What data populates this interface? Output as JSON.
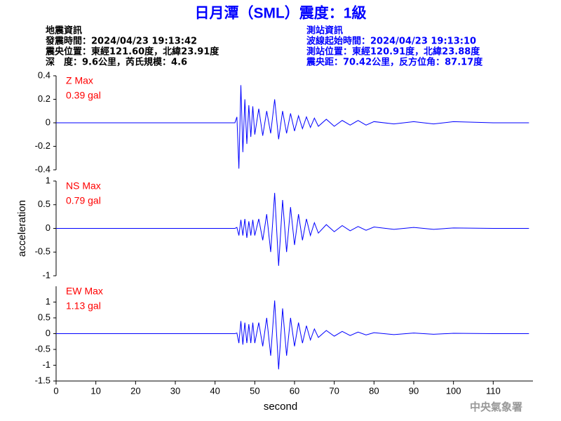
{
  "header": {
    "title": "日月潭（SML）震度：1級",
    "left": [
      "地震資訊",
      "發震時間：2024/04/23 19:13:42",
      "震央位置：東經121.60度，北緯23.91度",
      "深　度：9.6公里，芮氏規模：4.6"
    ],
    "right": [
      "測站資訊",
      "波線起始時間：2024/04/23 19:13:10",
      "測站位置：東經120.91度，北緯23.88度",
      "震央距：70.42公里，反方位角：87.17度"
    ],
    "watermark": "中央氣象署"
  },
  "chart_data": [
    {
      "type": "line",
      "annotation": [
        "Z Max",
        "0.39 gal"
      ],
      "color": "#0000ff",
      "xlim": [
        0,
        120
      ],
      "ylim": [
        -0.4,
        0.4
      ],
      "yticks": [
        0.4,
        0.2,
        0,
        -0.2,
        -0.4
      ],
      "x": [
        0,
        20,
        45,
        45.5,
        46,
        46.5,
        47,
        47.5,
        48,
        48.5,
        49,
        49.5,
        50,
        51,
        52,
        53,
        54,
        55,
        56,
        57,
        58,
        59,
        60,
        61,
        62,
        63,
        64,
        65,
        66,
        68,
        70,
        72,
        74,
        76,
        78,
        80,
        85,
        90,
        95,
        100,
        110,
        119
      ],
      "values": [
        0,
        0,
        0,
        0.05,
        -0.39,
        0.32,
        -0.25,
        0.2,
        -0.18,
        0.15,
        -0.12,
        0.14,
        -0.1,
        0.12,
        -0.11,
        0.1,
        -0.09,
        0.2,
        -0.14,
        0.1,
        -0.09,
        0.08,
        -0.07,
        0.06,
        -0.05,
        0.05,
        -0.04,
        0.04,
        -0.03,
        0.03,
        -0.03,
        0.02,
        -0.02,
        0.02,
        -0.02,
        0.01,
        -0.01,
        0.01,
        -0.01,
        0.01,
        0,
        0
      ]
    },
    {
      "type": "line",
      "annotation": [
        "NS Max",
        "0.79 gal"
      ],
      "ylabel": "acceleration",
      "color": "#0000ff",
      "xlim": [
        0,
        120
      ],
      "ylim": [
        -1,
        1
      ],
      "yticks": [
        1,
        0.5,
        0,
        -0.5,
        -1
      ],
      "x": [
        0,
        20,
        45,
        45.5,
        46,
        46.5,
        47,
        47.5,
        48,
        48.5,
        49,
        49.5,
        50,
        51,
        52,
        53,
        54,
        55,
        56,
        57,
        58,
        59,
        60,
        61,
        62,
        63,
        64,
        65,
        66,
        68,
        70,
        72,
        74,
        76,
        78,
        80,
        85,
        90,
        95,
        100,
        110,
        119
      ],
      "values": [
        0,
        0,
        0,
        0.02,
        -0.15,
        0.18,
        -0.15,
        0.2,
        -0.2,
        0.15,
        -0.15,
        0.18,
        -0.15,
        0.2,
        -0.25,
        0.3,
        -0.5,
        0.75,
        -0.79,
        0.6,
        -0.5,
        0.45,
        -0.35,
        0.3,
        -0.25,
        0.2,
        -0.15,
        0.12,
        -0.1,
        0.08,
        -0.07,
        0.06,
        -0.05,
        0.04,
        -0.04,
        0.03,
        -0.02,
        0.02,
        -0.02,
        0.01,
        0,
        0
      ]
    },
    {
      "type": "line",
      "annotation": [
        "EW Max",
        "1.13 gal"
      ],
      "xlabel": "second",
      "color": "#0000ff",
      "xlim": [
        0,
        120
      ],
      "ylim": [
        -1.5,
        1.5
      ],
      "yticks": [
        1,
        0.5,
        0,
        -0.5,
        -1,
        -1.5
      ],
      "xticks": [
        0,
        10,
        20,
        30,
        40,
        50,
        60,
        70,
        80,
        90,
        100,
        110
      ],
      "x": [
        0,
        20,
        45,
        45.5,
        46,
        46.5,
        47,
        47.5,
        48,
        48.5,
        49,
        49.5,
        50,
        51,
        52,
        53,
        54,
        55,
        56,
        57,
        58,
        59,
        60,
        61,
        62,
        63,
        64,
        65,
        66,
        68,
        70,
        72,
        74,
        76,
        78,
        80,
        85,
        90,
        95,
        100,
        110,
        119
      ],
      "values": [
        0,
        0,
        0,
        0.02,
        -0.3,
        0.4,
        -0.35,
        0.35,
        -0.3,
        0.3,
        -0.3,
        0.35,
        -0.3,
        0.35,
        -0.4,
        0.5,
        -0.7,
        1.05,
        -1.13,
        0.8,
        -0.7,
        0.5,
        -0.4,
        0.35,
        -0.3,
        0.25,
        -0.2,
        0.15,
        -0.12,
        0.1,
        -0.08,
        0.07,
        -0.06,
        0.05,
        -0.04,
        0.03,
        -0.03,
        0.02,
        -0.02,
        0.01,
        0,
        0
      ]
    }
  ]
}
